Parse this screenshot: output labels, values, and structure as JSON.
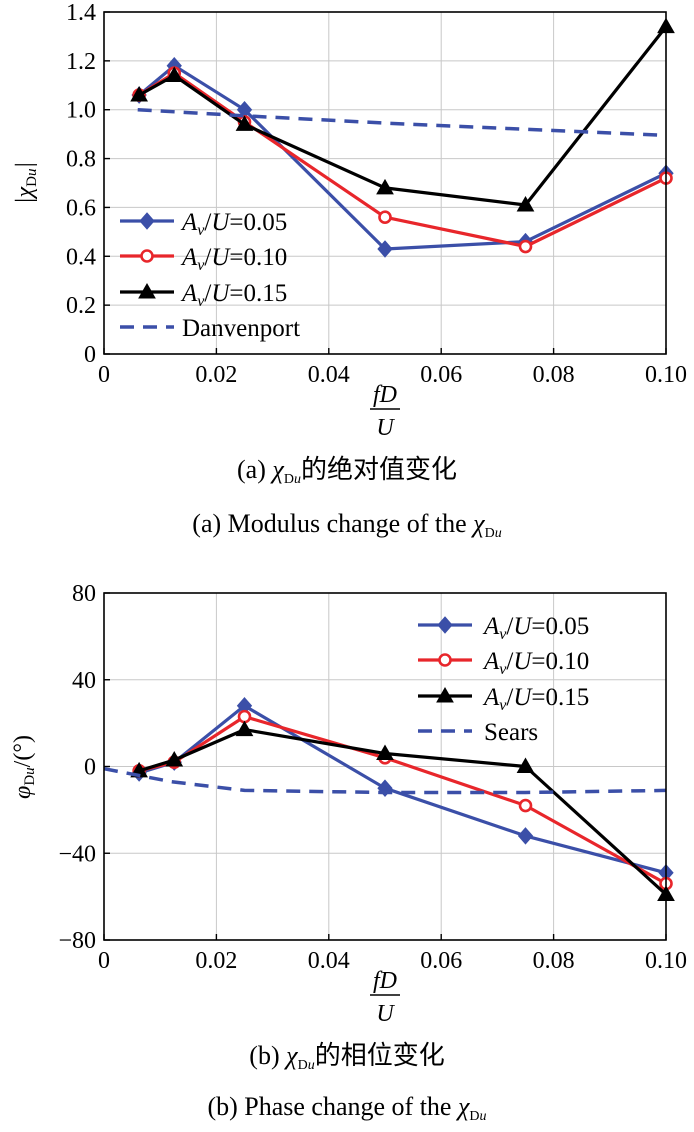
{
  "chart_data": [
    {
      "type": "line",
      "ylabel": "|χDu|",
      "xlabel_num": "fD",
      "xlabel_den": "U",
      "xlim": [
        0,
        0.1
      ],
      "ylim": [
        0,
        1.4
      ],
      "xticks": [
        "0",
        "0.02",
        "0.04",
        "0.06",
        "0.08",
        "0.10"
      ],
      "yticks": [
        "0",
        "0.2",
        "0.4",
        "0.6",
        "0.8",
        "1.0",
        "1.2",
        "1.4"
      ],
      "grid": true,
      "legend_position": "bottom-left",
      "caption_cn": "(a) χDu的绝对值变化",
      "caption_en": "(a) Modulus change of the χDu",
      "series": [
        {
          "name": "Av/U=0.05",
          "color": "#3b4fa8",
          "marker": "diamond",
          "x": [
            0.00625,
            0.0125,
            0.025,
            0.05,
            0.075,
            0.1
          ],
          "y": [
            1.06,
            1.18,
            1.0,
            0.43,
            0.46,
            0.74
          ]
        },
        {
          "name": "Av/U=0.10",
          "color": "#e8262b",
          "marker": "circle",
          "x": [
            0.00625,
            0.0125,
            0.025,
            0.05,
            0.075,
            0.1
          ],
          "y": [
            1.06,
            1.15,
            0.95,
            0.56,
            0.44,
            0.72
          ]
        },
        {
          "name": "Av/U=0.15",
          "color": "#000000",
          "marker": "triangle",
          "x": [
            0.00625,
            0.0125,
            0.025,
            0.05,
            0.075,
            0.1
          ],
          "y": [
            1.06,
            1.14,
            0.94,
            0.68,
            0.61,
            1.34
          ]
        },
        {
          "name": "Danvenport",
          "color": "#3b4fa8",
          "marker": "none",
          "dashed": true,
          "x": [
            0.006,
            0.025,
            0.05,
            0.075,
            0.1
          ],
          "y": [
            1.0,
            0.975,
            0.945,
            0.92,
            0.895
          ]
        }
      ]
    },
    {
      "type": "line",
      "ylabel": "φDu/(°)",
      "xlabel_num": "fD",
      "xlabel_den": "U",
      "xlim": [
        0,
        0.1
      ],
      "ylim": [
        -80,
        80
      ],
      "xticks": [
        "0",
        "0.02",
        "0.04",
        "0.06",
        "0.08",
        "0.10"
      ],
      "yticks": [
        "−80",
        "−40",
        "0",
        "40",
        "80"
      ],
      "grid": true,
      "legend_position": "top-right",
      "caption_cn": "(b) χDu的相位变化",
      "caption_en": "(b) Phase change of the χDu",
      "series": [
        {
          "name": "Av/U=0.05",
          "color": "#3b4fa8",
          "marker": "diamond",
          "x": [
            0.00625,
            0.0125,
            0.025,
            0.05,
            0.075,
            0.1
          ],
          "y": [
            -3,
            2,
            28,
            -10,
            -32,
            -49
          ]
        },
        {
          "name": "Av/U=0.10",
          "color": "#e8262b",
          "marker": "circle",
          "x": [
            0.00625,
            0.0125,
            0.025,
            0.05,
            0.075,
            0.1
          ],
          "y": [
            -2,
            2,
            23,
            4,
            -18,
            -54
          ]
        },
        {
          "name": "Av/U=0.15",
          "color": "#000000",
          "marker": "triangle",
          "x": [
            0.00625,
            0.0125,
            0.025,
            0.05,
            0.075,
            0.1
          ],
          "y": [
            -2,
            3,
            17,
            6,
            0,
            -59
          ]
        },
        {
          "name": "Sears",
          "color": "#3b4fa8",
          "marker": "none",
          "dashed": true,
          "x": [
            0,
            0.012,
            0.025,
            0.05,
            0.075,
            0.1
          ],
          "y": [
            -1,
            -7,
            -11,
            -12,
            -12,
            -11
          ]
        }
      ]
    }
  ]
}
